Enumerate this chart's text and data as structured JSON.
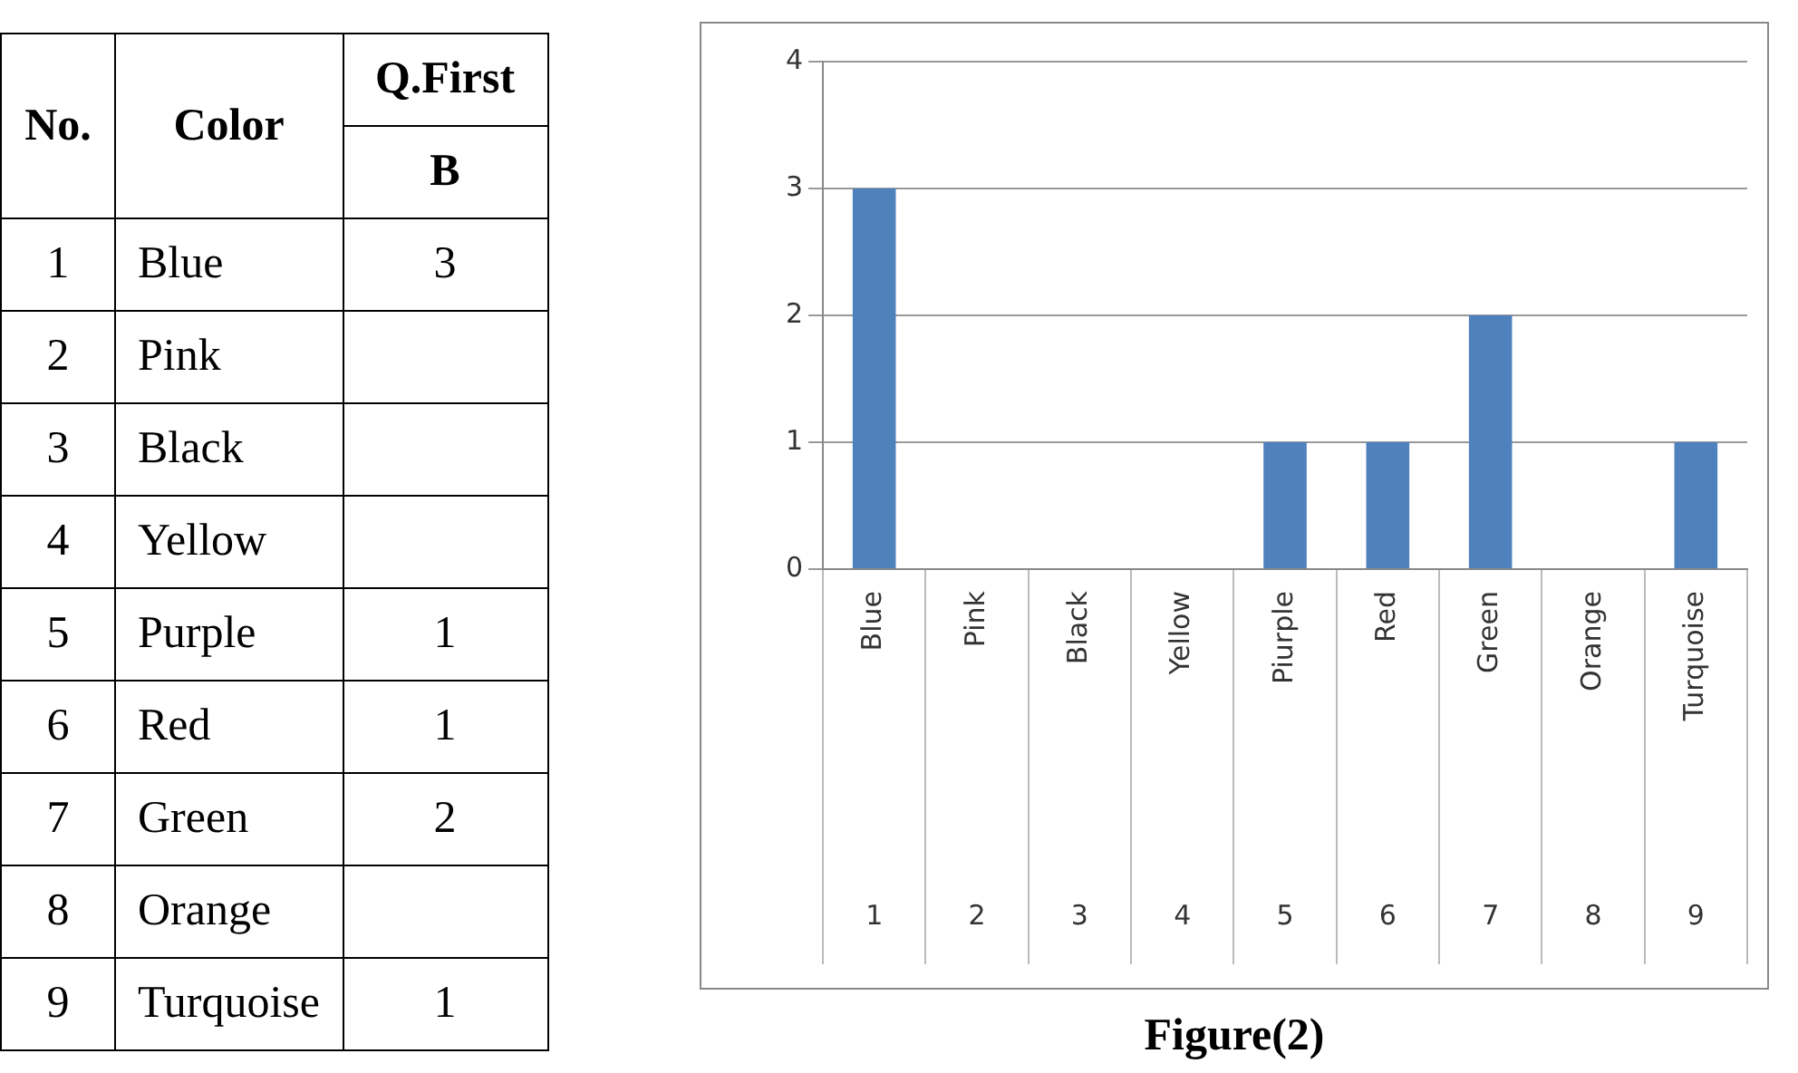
{
  "chart_data": {
    "type": "bar",
    "categories": [
      "Blue",
      "Pink",
      "Black",
      "Yellow",
      "Piurple",
      "Red",
      "Green",
      "Orange",
      "Turquoise"
    ],
    "values": [
      3,
      null,
      null,
      null,
      1,
      1,
      2,
      null,
      1
    ],
    "color": "#4f81bd",
    "ylim": [
      0,
      4
    ],
    "yticks": [
      0,
      1,
      2,
      3,
      4
    ],
    "grid": "y",
    "legend": false,
    "annotations": [
      "No.",
      "Color",
      "Q.First",
      "B",
      "Figure(2)",
      "1",
      "2",
      "3",
      "4",
      "5",
      "6",
      "7",
      "8",
      "9",
      "Blue",
      "Pink",
      "Black",
      "Yellow",
      "Purple",
      "Red",
      "Green",
      "Orange",
      "Turquoise"
    ]
  }
}
